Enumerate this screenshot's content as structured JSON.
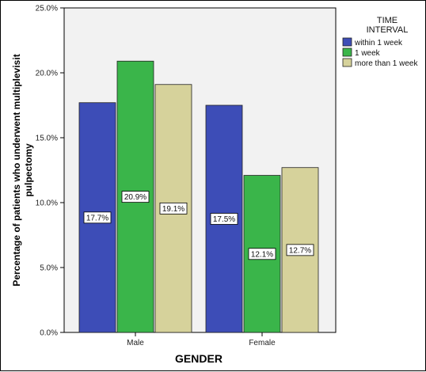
{
  "chart_data": {
    "type": "bar",
    "xlabel": "GENDER",
    "ylabel_lines": [
      "Percentage of patients who underwent multiplevisit",
      "pulpectomy"
    ],
    "ylim": [
      0,
      25
    ],
    "yticks": [
      "0.0%",
      "5.0%",
      "10.0%",
      "15.0%",
      "20.0%",
      "25.0%"
    ],
    "ytick_values": [
      0,
      5,
      10,
      15,
      20,
      25
    ],
    "grid": false,
    "legend_placement": "right",
    "legend_title_lines": [
      "TIME",
      "INTERVAL"
    ],
    "categories": [
      "Male",
      "Female"
    ],
    "series": [
      {
        "name": "within 1 week",
        "color": "#3d4db7",
        "values": [
          17.7,
          17.5
        ],
        "labels": [
          "17.7%",
          "17.5%"
        ]
      },
      {
        "name": "1 week",
        "color": "#3ab54a",
        "values": [
          20.9,
          12.1
        ],
        "labels": [
          "20.9%",
          "12.1%"
        ]
      },
      {
        "name": "more than 1 week",
        "color": "#d6d29b",
        "values": [
          19.1,
          12.7
        ],
        "labels": [
          "19.1%",
          "12.7%"
        ]
      }
    ],
    "plot_background": "#f2f2f2"
  }
}
